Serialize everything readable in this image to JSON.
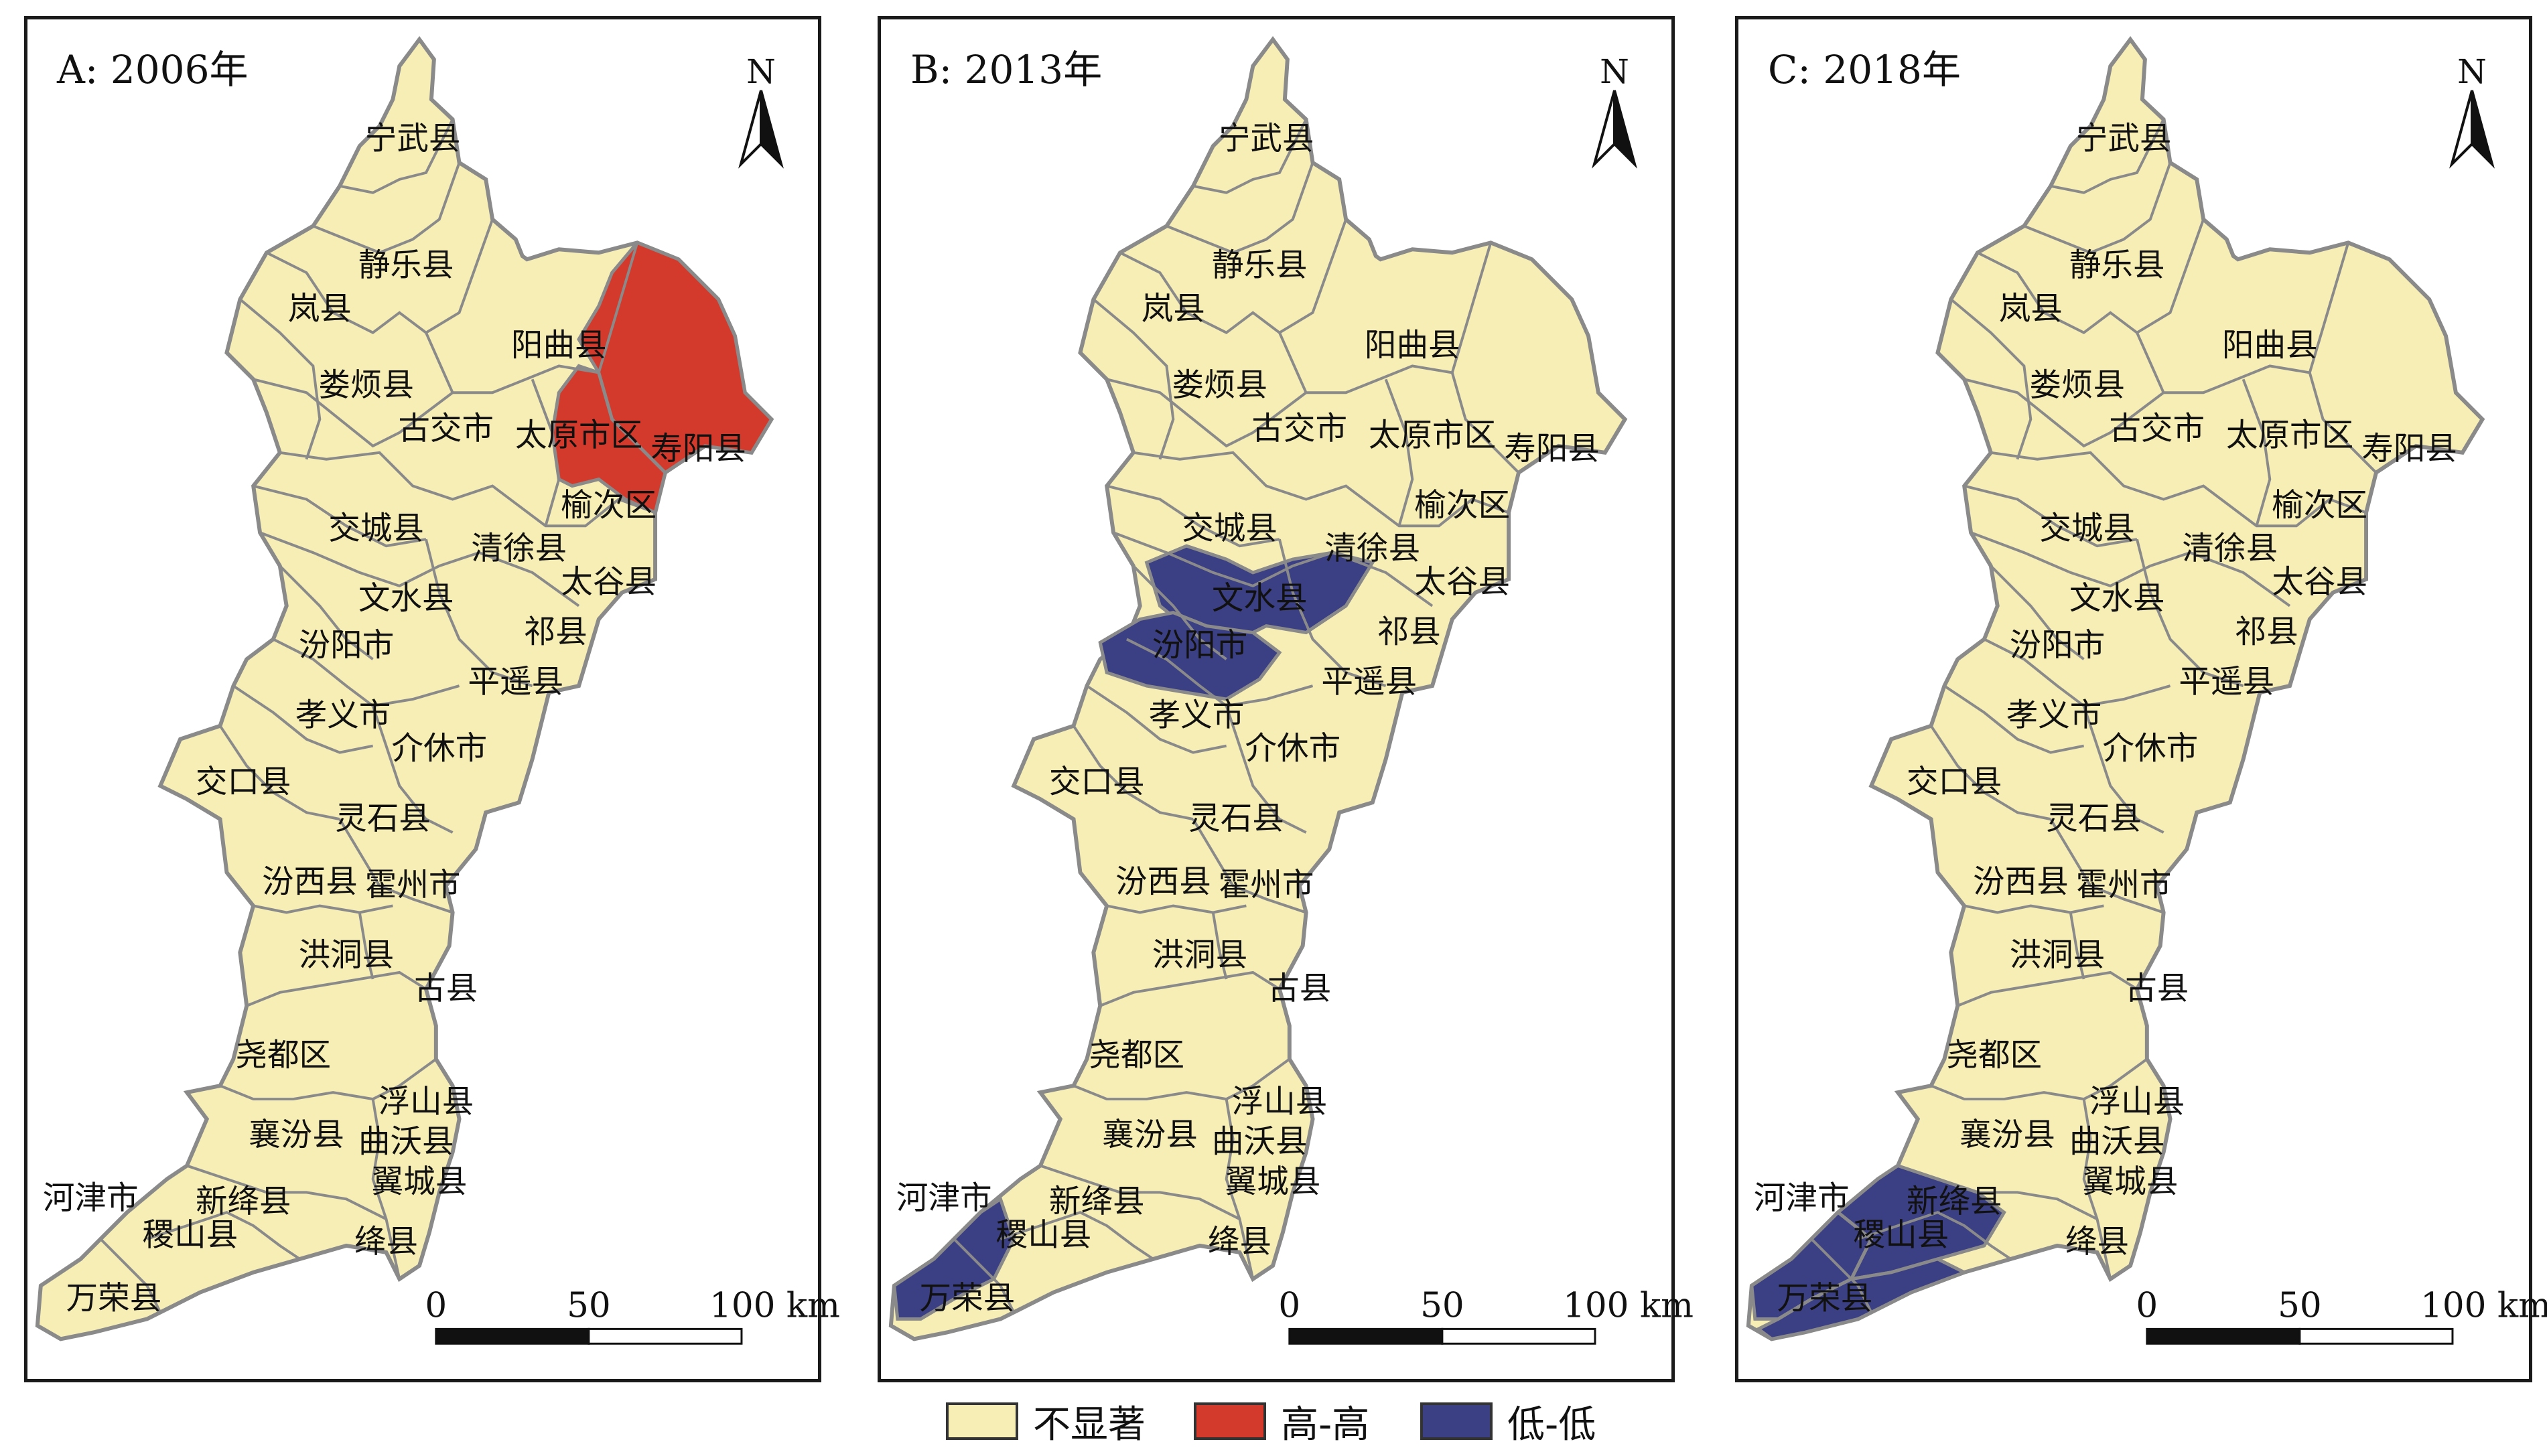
{
  "colors": {
    "not_significant": "#f7eeb5",
    "high_high": "#d33a2c",
    "low_low": "#3b3f83",
    "boundary": "#8a8a8a"
  },
  "panels": [
    {
      "title": "A: 2006年",
      "high_high": [
        "寿阳县",
        "榆次区"
      ],
      "low_low": []
    },
    {
      "title": "B: 2013年",
      "high_high": [],
      "low_low": [
        "文水县",
        "汾阳市",
        "河津市"
      ]
    },
    {
      "title": "C: 2018年",
      "high_high": [],
      "low_low": [
        "河津市",
        "稷山县",
        "万荣县"
      ]
    }
  ],
  "north_label": "N",
  "scale": {
    "ticks": [
      "0",
      "50",
      "100 km"
    ]
  },
  "counties": [
    "宁武县",
    "静乐县",
    "岚县",
    "阳曲县",
    "娄烦县",
    "古交市",
    "太原市区",
    "寿阳县",
    "榆次区",
    "交城县",
    "清徐县",
    "太谷县",
    "文水县",
    "祁县",
    "汾阳市",
    "平遥县",
    "孝义市",
    "介休市",
    "交口县",
    "灵石县",
    "汾西县",
    "霍州市",
    "洪洞县",
    "古县",
    "尧都区",
    "浮山县",
    "襄汾县",
    "曲沃县",
    "翼城县",
    "河津市",
    "新绛县",
    "稷山县",
    "绛县",
    "万荣县"
  ],
  "legend": [
    {
      "label": "不显著",
      "color": "#f7eeb5"
    },
    {
      "label": "高-高",
      "color": "#d33a2c"
    },
    {
      "label": "低-低",
      "color": "#3b3f83"
    }
  ]
}
